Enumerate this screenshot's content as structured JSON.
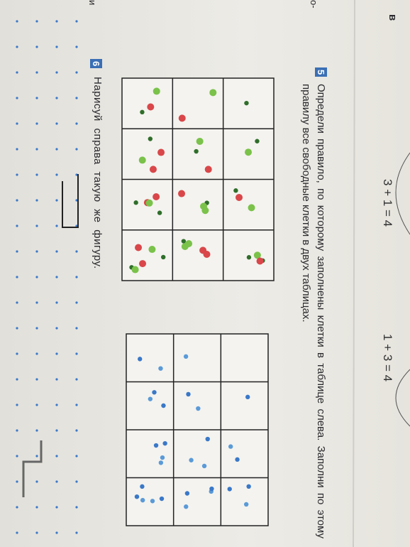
{
  "header": {
    "equations": [
      "3 + 1 = 4",
      "1 + 3 = 4"
    ],
    "edge_letters": [
      "в",
      "о-",
      "и"
    ]
  },
  "tasks": [
    {
      "number": "5",
      "text": "Определи правило, по которому заполнены клетки в таблице слева. Заполни по этому правилу все свободные клетки в двух таблицах."
    },
    {
      "number": "6",
      "text": "Нарисуй справа такую же фигуру."
    }
  ]
}
